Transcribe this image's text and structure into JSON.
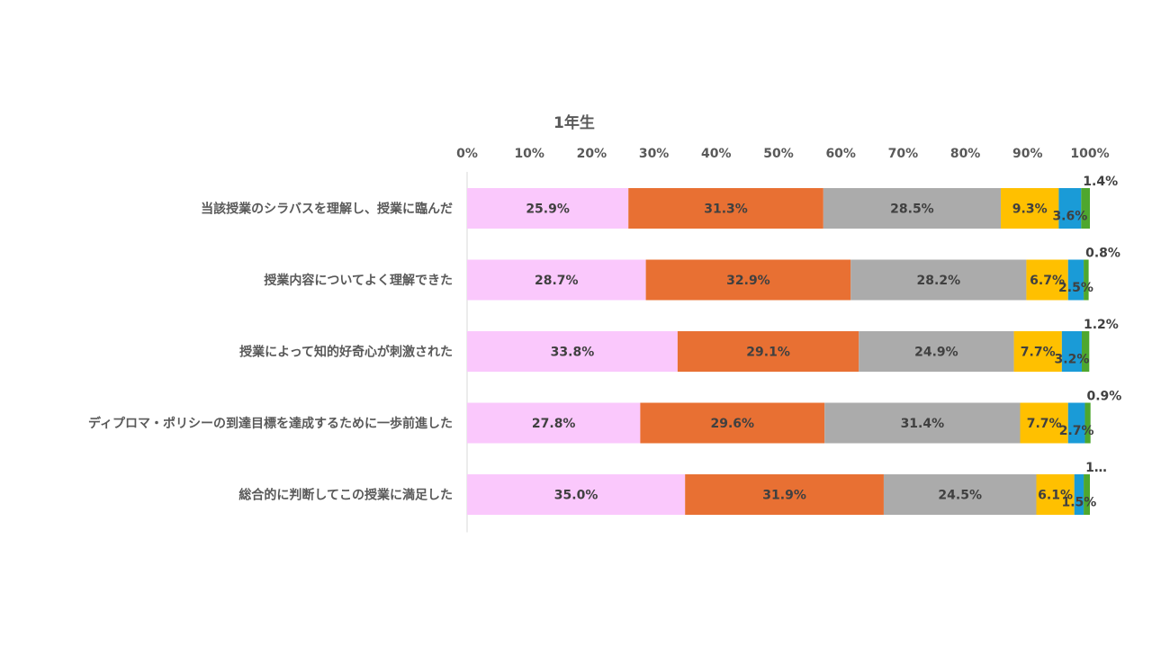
{
  "chart_data": {
    "type": "bar",
    "orientation": "horizontal",
    "stacked": "percent",
    "title": "1年生",
    "xlim": [
      0,
      100
    ],
    "x_ticks": [
      "0%",
      "10%",
      "20%",
      "30%",
      "40%",
      "50%",
      "60%",
      "70%",
      "80%",
      "90%",
      "100%"
    ],
    "x_axis_position": "top",
    "grid": false,
    "legend": "none",
    "categories": [
      "当該授業のシラバスを理解し、授業に臨んだ",
      "授業内容についてよく理解できた",
      "授業によって知的好奇心が刺激された",
      "ディプロマ・ポリシーの到達目標を達成するために一歩前進した",
      "総合的に判断してこの授業に満足した"
    ],
    "series": [
      {
        "color": "#FAC8FC",
        "values": [
          25.9,
          28.7,
          33.8,
          27.8,
          35.0
        ],
        "labels": [
          "25.9%",
          "28.7%",
          "33.8%",
          "27.8%",
          "35.0%"
        ]
      },
      {
        "color": "#E87033",
        "values": [
          31.3,
          32.9,
          29.1,
          29.6,
          31.9
        ],
        "labels": [
          "31.3%",
          "32.9%",
          "29.1%",
          "29.6%",
          "31.9%"
        ]
      },
      {
        "color": "#ABABAB",
        "values": [
          28.5,
          28.2,
          24.9,
          31.4,
          24.5
        ],
        "labels": [
          "28.5%",
          "28.2%",
          "24.9%",
          "31.4%",
          "24.5%"
        ]
      },
      {
        "color": "#FFC000",
        "values": [
          9.3,
          6.7,
          7.7,
          7.7,
          6.1
        ],
        "labels": [
          "9.3%",
          "6.7%",
          "7.7%",
          "7.7%",
          "6.1%"
        ]
      },
      {
        "color": "#1A9BD7",
        "values": [
          3.6,
          2.5,
          3.2,
          2.7,
          1.5
        ],
        "labels": [
          "3.6%",
          "2.5%",
          "3.2%",
          "2.7%",
          "1.5%"
        ]
      },
      {
        "color": "#4EA72E",
        "values": [
          1.4,
          0.8,
          1.2,
          0.9,
          1.0
        ],
        "labels": [
          "1.4%",
          "0.8%",
          "1.2%",
          "0.9%",
          "1…"
        ]
      }
    ]
  }
}
